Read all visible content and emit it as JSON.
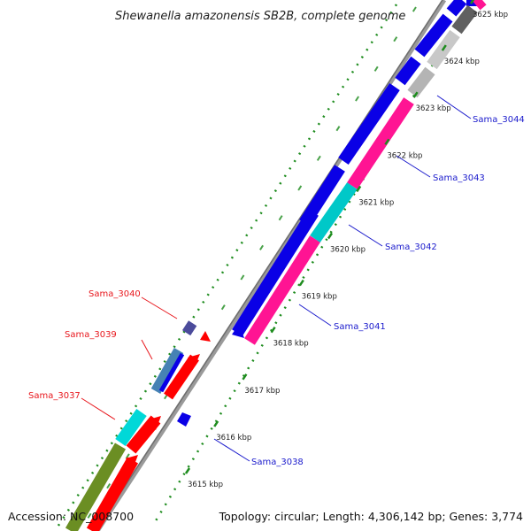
{
  "title": "Shewanella amazonensis SB2B, complete genome",
  "footer": {
    "accession": "Accession: NC_008700",
    "summary": "Topology: circular; Length: 4,306,142 bp; Genes: 3,774"
  },
  "scale_ticks": [
    "3615 kbp",
    "3616 kbp",
    "3617 kbp",
    "3618 kbp",
    "3619 kbp",
    "3620 kbp",
    "3621 kbp",
    "3622 kbp",
    "3623 kbp",
    "3624 kbp",
    "3625 kbp"
  ],
  "genes_left": [
    {
      "label": "Sama_3040",
      "color": "#e8171d"
    },
    {
      "label": "Sama_3039",
      "color": "#e8171d"
    },
    {
      "label": "Sama_3037",
      "color": "#e8171d"
    }
  ],
  "genes_right": [
    {
      "label": "Sama_3044",
      "color": "#1a1acc"
    },
    {
      "label": "Sama_3043",
      "color": "#1a1acc"
    },
    {
      "label": "Sama_3042",
      "color": "#1a1acc"
    },
    {
      "label": "Sama_3041",
      "color": "#1a1acc"
    },
    {
      "label": "Sama_3038",
      "color": "#1a1acc"
    }
  ],
  "colors": {
    "forward_cds": "#0a00e6",
    "reverse_cds": "#ff0000",
    "rrna_pink": "#ff1493",
    "cyan_feature": "#00c8c8",
    "olive_feature": "#6b8e23",
    "gray_feature": "#b4b4b4",
    "dark_gray_feature": "#606060",
    "backbone": "#8c8c8c",
    "gc_dots": "#1e8c1e"
  }
}
